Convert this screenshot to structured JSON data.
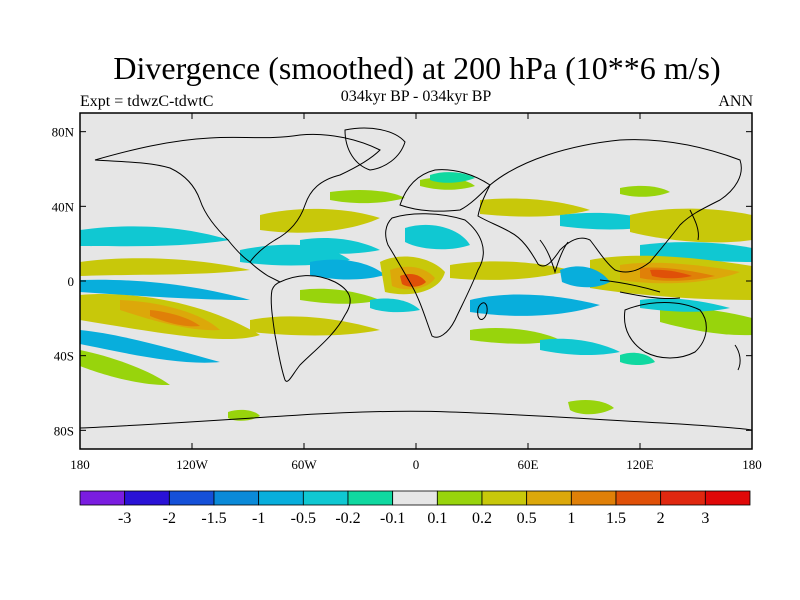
{
  "title": "Divergence (smoothed) at 200 hPa (10**6 m/s)",
  "subtitle_left": "Expt = tdwzC-tdwtC",
  "subtitle_center": "034kyr BP - 034kyr BP",
  "subtitle_right": "ANN",
  "map": {
    "lon_ticks": [
      "180",
      "120W",
      "60W",
      "0",
      "60E",
      "120E",
      "180"
    ],
    "lat_ticks": [
      "80N",
      "40N",
      "0",
      "40S",
      "80S"
    ],
    "lat_values": [
      80,
      40,
      0,
      -40,
      -80
    ],
    "lon_values": [
      -180,
      -120,
      -60,
      0,
      60,
      120,
      180
    ],
    "background": "#e6e6e6",
    "coastline_color": "#000000"
  },
  "colorbar": {
    "labels": [
      "-3",
      "-2",
      "-1.5",
      "-1",
      "-0.5",
      "-0.2",
      "-0.1",
      "0.1",
      "0.2",
      "0.5",
      "1",
      "1.5",
      "2",
      "3"
    ],
    "colors": [
      "#7a1de0",
      "#2a12d6",
      "#1550d8",
      "#0a8ad8",
      "#08aedc",
      "#10c8d2",
      "#10d8a0",
      "#e6e6e6",
      "#98d40c",
      "#c8c80a",
      "#dca80a",
      "#e08008",
      "#e05008",
      "#e02810",
      "#e00808"
    ]
  }
}
